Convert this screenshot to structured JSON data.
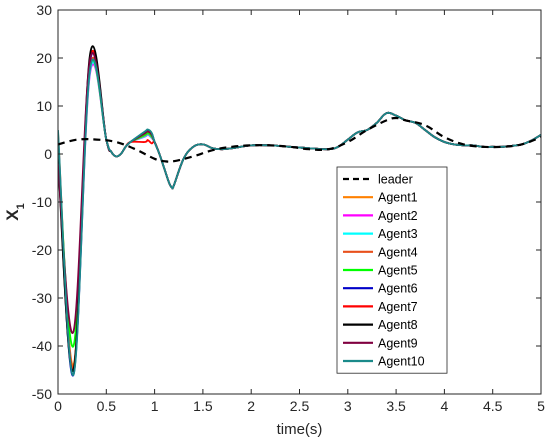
{
  "chart_data": {
    "type": "line",
    "xlabel": "time(s)",
    "ylabel": "X",
    "ylabel_subscript": "1",
    "xlim": [
      0,
      5
    ],
    "ylim": [
      -50,
      30
    ],
    "xticks": [
      0,
      0.5,
      1,
      1.5,
      2,
      2.5,
      3,
      3.5,
      4,
      4.5,
      5
    ],
    "xtick_labels": [
      "0",
      "0.5",
      "1",
      "1.5",
      "2",
      "2.5",
      "3",
      "3.5",
      "4",
      "4.5",
      "5"
    ],
    "yticks": [
      -50,
      -40,
      -30,
      -20,
      -10,
      0,
      10,
      20,
      30
    ],
    "ytick_labels": [
      "-50",
      "-40",
      "-30",
      "-20",
      "-10",
      "0",
      "10",
      "20",
      "30"
    ],
    "grid": false,
    "legend_position": "center-right",
    "leader": {
      "name": "leader",
      "color": "#000000",
      "dashed": true,
      "x": [
        0,
        0.2,
        0.4,
        0.6,
        0.8,
        1.0,
        1.1,
        1.2,
        1.4,
        1.6,
        1.8,
        2.0,
        2.2,
        2.4,
        2.6,
        2.8,
        3.0,
        3.2,
        3.4,
        3.5,
        3.6,
        3.8,
        4.0,
        4.2,
        4.4,
        4.6,
        4.8,
        5.0
      ],
      "y": [
        2.0,
        3.0,
        3.0,
        2.5,
        1.0,
        -1.0,
        -1.5,
        -1.5,
        -0.5,
        0.8,
        1.5,
        1.8,
        1.8,
        1.5,
        1.0,
        1.0,
        2.5,
        5.0,
        7.0,
        7.5,
        7.0,
        6.0,
        3.5,
        2.0,
        1.5,
        1.5,
        2.0,
        3.5
      ]
    },
    "common_x": [
      0.8,
      0.85,
      1.0,
      1.05,
      1.1,
      1.15,
      1.18,
      1.2,
      1.3,
      1.4,
      1.5,
      1.6,
      1.7,
      1.8,
      2.0,
      2.2,
      2.4,
      2.6,
      2.8,
      2.9,
      3.0,
      3.1,
      3.2,
      3.3,
      3.4,
      3.5,
      3.6,
      3.7,
      3.8,
      3.9,
      4.0,
      4.1,
      4.2,
      4.3,
      4.4,
      4.5,
      4.6,
      4.7,
      4.8,
      4.9,
      5.0
    ],
    "common_y": [
      3.0,
      2.5,
      2.5,
      0.0,
      -3.0,
      -6.0,
      -7.0,
      -6.5,
      -1.0,
      1.5,
      2.0,
      1.2,
      1.0,
      1.2,
      1.8,
      1.8,
      1.5,
      1.2,
      1.0,
      1.5,
      3.0,
      4.5,
      5.0,
      6.5,
      8.5,
      8.0,
      7.0,
      6.5,
      5.0,
      3.5,
      2.5,
      2.0,
      1.8,
      1.8,
      1.5,
      1.5,
      1.5,
      1.7,
      2.0,
      2.8,
      4.0
    ],
    "series": [
      {
        "name": "Agent1",
        "color": "#ff8000",
        "peak": 17.5,
        "trough": -44.0,
        "bump": 3.8,
        "start": 4.5
      },
      {
        "name": "Agent2",
        "color": "#ff00ff",
        "peak": 16.5,
        "trough": -45.0,
        "bump": 3.6,
        "start": 4.0
      },
      {
        "name": "Agent3",
        "color": "#00ffff",
        "peak": 17.0,
        "trough": -45.0,
        "bump": 3.7,
        "start": 3.5
      },
      {
        "name": "Agent4",
        "color": "#e8501c",
        "peak": 18.0,
        "trough": -44.5,
        "bump": 3.9,
        "start": 2.5
      },
      {
        "name": "Agent5",
        "color": "#00ff00",
        "peak": 17.8,
        "trough": -40.0,
        "bump": 4.0,
        "start": 1.5
      },
      {
        "name": "Agent6",
        "color": "#0000c8",
        "peak": 19.0,
        "trough": -46.0,
        "bump": 4.6,
        "start": 1.0
      },
      {
        "name": "Agent7",
        "color": "#ff0000",
        "peak": 19.5,
        "trough": -45.0,
        "bump": 2.5,
        "start": 0.0
      },
      {
        "name": "Agent8",
        "color": "#000000",
        "peak": 20.5,
        "trough": -45.0,
        "bump": 4.5,
        "start": -1.0
      },
      {
        "name": "Agent9",
        "color": "#800040",
        "peak": 19.5,
        "trough": -37.0,
        "bump": 4.3,
        "start": -2.0
      },
      {
        "name": "Agent10",
        "color": "#1a8a8a",
        "peak": 17.5,
        "trough": -46.0,
        "bump": 4.7,
        "start": 5.0
      }
    ]
  }
}
